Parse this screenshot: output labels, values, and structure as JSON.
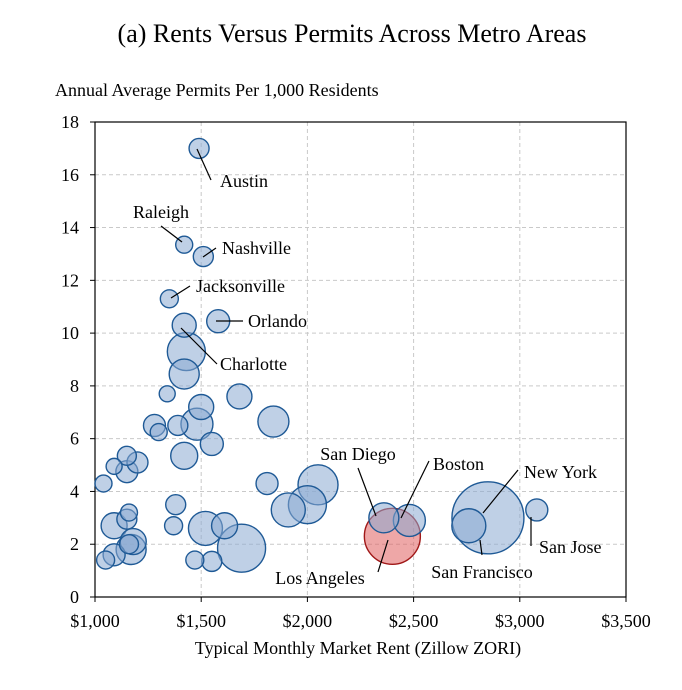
{
  "chart_data": {
    "type": "scatter",
    "title": "(a) Rents Versus Permits Across Metro Areas",
    "ylabel": "Annual Average Permits Per 1,000 Residents",
    "xlabel": "Typical Monthly Market Rent (Zillow ZORI)",
    "xlim": [
      1000,
      3500
    ],
    "ylim": [
      0,
      18
    ],
    "xticks": [
      1000,
      1500,
      2000,
      2500,
      3000,
      3500
    ],
    "xtick_labels": [
      "$1,000",
      "$1,500",
      "$2,000",
      "$2,500",
      "$3,000",
      "$3,500"
    ],
    "yticks": [
      0,
      2,
      4,
      6,
      8,
      10,
      12,
      14,
      16,
      18
    ],
    "ytick_labels": [
      "0",
      "2",
      "4",
      "6",
      "8",
      "10",
      "12",
      "14",
      "16",
      "18"
    ],
    "grid": "dashed",
    "colors": {
      "bubble": "#8aaad2",
      "bubble_edge": "#1f5a96",
      "highlight": "#e05e5e",
      "highlight_edge": "#a01818"
    },
    "labeled_points": [
      {
        "name": "Austin",
        "x": 1490,
        "y": 17.0,
        "size": 10
      },
      {
        "name": "Raleigh",
        "x": 1420,
        "y": 13.35,
        "size": 8.5
      },
      {
        "name": "Nashville",
        "x": 1510,
        "y": 12.9,
        "size": 10
      },
      {
        "name": "Jacksonville",
        "x": 1350,
        "y": 11.3,
        "size": 9
      },
      {
        "name": "Orlando",
        "x": 1580,
        "y": 10.45,
        "size": 11.5
      },
      {
        "name": "Charlotte",
        "x": 1430,
        "y": 9.3,
        "size": 19
      },
      {
        "name": "San Diego",
        "x": 2360,
        "y": 3.0,
        "size": 15
      },
      {
        "name": "Boston",
        "x": 2480,
        "y": 2.9,
        "size": 16
      },
      {
        "name": "New York",
        "x": 2850,
        "y": 3.0,
        "size": 36
      },
      {
        "name": "San Jose",
        "x": 3080,
        "y": 3.3,
        "size": 11
      },
      {
        "name": "San Francisco",
        "x": 2760,
        "y": 2.7,
        "size": 17
      },
      {
        "name": "Los Angeles",
        "x": 2400,
        "y": 2.3,
        "size": 28,
        "highlight": true
      }
    ],
    "other_points": [
      {
        "x": 1420,
        "y": 10.3,
        "size": 12
      },
      {
        "x": 1420,
        "y": 8.45,
        "size": 15
      },
      {
        "x": 1340,
        "y": 7.7,
        "size": 8
      },
      {
        "x": 1680,
        "y": 7.6,
        "size": 12.5
      },
      {
        "x": 1500,
        "y": 7.2,
        "size": 12.5
      },
      {
        "x": 1840,
        "y": 6.65,
        "size": 15.5
      },
      {
        "x": 1480,
        "y": 6.55,
        "size": 16
      },
      {
        "x": 1390,
        "y": 6.5,
        "size": 10
      },
      {
        "x": 1280,
        "y": 6.5,
        "size": 11
      },
      {
        "x": 1300,
        "y": 6.25,
        "size": 8.5
      },
      {
        "x": 1550,
        "y": 5.8,
        "size": 11.5
      },
      {
        "x": 1420,
        "y": 5.35,
        "size": 13.5
      },
      {
        "x": 1150,
        "y": 5.35,
        "size": 9.5
      },
      {
        "x": 1200,
        "y": 5.1,
        "size": 10.5
      },
      {
        "x": 1090,
        "y": 4.95,
        "size": 8
      },
      {
        "x": 1150,
        "y": 4.75,
        "size": 11
      },
      {
        "x": 1040,
        "y": 4.3,
        "size": 8.5
      },
      {
        "x": 2050,
        "y": 4.25,
        "size": 20
      },
      {
        "x": 1810,
        "y": 4.3,
        "size": 11
      },
      {
        "x": 1380,
        "y": 3.5,
        "size": 10
      },
      {
        "x": 2000,
        "y": 3.5,
        "size": 19
      },
      {
        "x": 1910,
        "y": 3.3,
        "size": 17
      },
      {
        "x": 1160,
        "y": 3.2,
        "size": 8.5
      },
      {
        "x": 1150,
        "y": 2.95,
        "size": 10
      },
      {
        "x": 1090,
        "y": 2.7,
        "size": 13
      },
      {
        "x": 1370,
        "y": 2.7,
        "size": 9
      },
      {
        "x": 1520,
        "y": 2.6,
        "size": 17
      },
      {
        "x": 1610,
        "y": 2.7,
        "size": 13
      },
      {
        "x": 1180,
        "y": 2.1,
        "size": 13
      },
      {
        "x": 1160,
        "y": 2.0,
        "size": 9.5
      },
      {
        "x": 1170,
        "y": 1.8,
        "size": 15
      },
      {
        "x": 1090,
        "y": 1.6,
        "size": 11
      },
      {
        "x": 1050,
        "y": 1.4,
        "size": 9
      },
      {
        "x": 1470,
        "y": 1.4,
        "size": 9
      },
      {
        "x": 1550,
        "y": 1.35,
        "size": 10
      },
      {
        "x": 1690,
        "y": 1.85,
        "size": 24
      }
    ]
  }
}
